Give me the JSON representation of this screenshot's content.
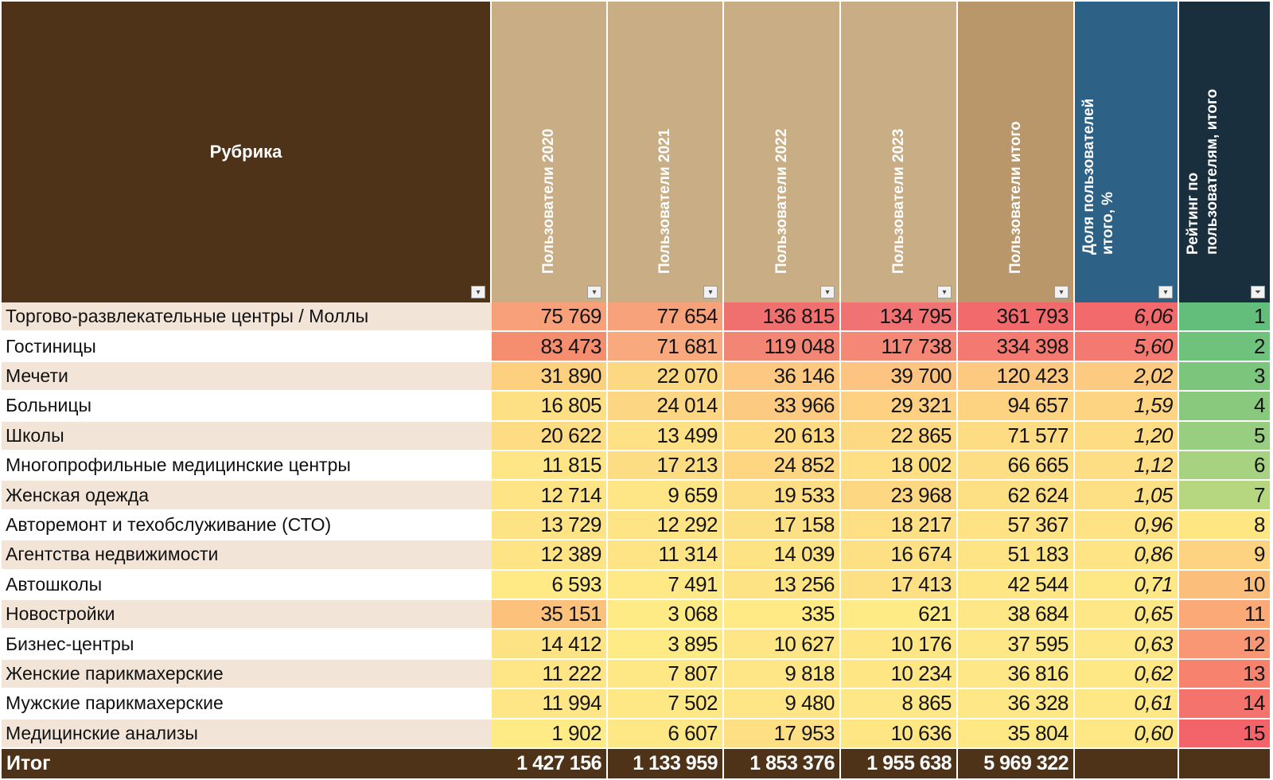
{
  "header": {
    "rubric": "Рубрика",
    "cols": [
      {
        "label": "Пользователи 2020",
        "color": "#c9ae85"
      },
      {
        "label": "Пользователи 2021",
        "color": "#c9ae85"
      },
      {
        "label": "Пользователи 2022",
        "color": "#c9ae85"
      },
      {
        "label": "Пользователи 2023",
        "color": "#c9ae85"
      },
      {
        "label": "Пользователи итого",
        "color": "#b9976a"
      },
      {
        "label": "Доля пользователей итого, %",
        "color": "#2d6286"
      },
      {
        "label": "Рейтинг по пользователям, итого",
        "color": "#1a2f3e"
      }
    ],
    "rubric_color": "#4f3319"
  },
  "rows": [
    {
      "name": "Торгово-развлекательные центры / Моллы",
      "v": [
        "75 769",
        "77 654",
        "136 815",
        "134 795",
        "361 793",
        "6,06",
        "1"
      ],
      "c": [
        "#f7a07a",
        "#f7a27b",
        "#f07070",
        "#f17272",
        "#f26a6b",
        "#f26a6b",
        "#63be7b"
      ]
    },
    {
      "name": "Гостиницы",
      "v": [
        "83 473",
        "71 681",
        "119 048",
        "117 738",
        "334 398",
        "5,60",
        "2"
      ],
      "c": [
        "#f58d6f",
        "#f8a97e",
        "#f38575",
        "#f48776",
        "#f47a71",
        "#f47a71",
        "#6fc27c"
      ]
    },
    {
      "name": "Мечети",
      "v": [
        "31 890",
        "22 070",
        "36 146",
        "39 700",
        "120 423",
        "2,02",
        "3"
      ],
      "c": [
        "#fcd07f",
        "#fdd883",
        "#fdc881",
        "#fdc380",
        "#fdc981",
        "#fdca81",
        "#7cc57d"
      ]
    },
    {
      "name": "Больницы",
      "v": [
        "16 805",
        "24 014",
        "33 966",
        "29 321",
        "94 657",
        "1,59",
        "4"
      ],
      "c": [
        "#fee084",
        "#fdd683",
        "#fdca81",
        "#fdd181",
        "#fdd382",
        "#fdd482",
        "#89c97e"
      ]
    },
    {
      "name": "Школы",
      "v": [
        "20 622",
        "13 499",
        "20 613",
        "22 865",
        "71 577",
        "1,20",
        "5"
      ],
      "c": [
        "#fedc83",
        "#fee185",
        "#fedb83",
        "#fed983",
        "#fedc83",
        "#fedc83",
        "#98ce7f"
      ]
    },
    {
      "name": "Многопрофильные медицинские центры",
      "v": [
        "11 815",
        "17 213",
        "24 852",
        "18 002",
        "66 665",
        "1,12",
        "6"
      ],
      "c": [
        "#fee585",
        "#fddd84",
        "#fed682",
        "#fedf84",
        "#fede84",
        "#fede84",
        "#a7d27f"
      ]
    },
    {
      "name": "Женская одежда",
      "v": [
        "12 714",
        "9 659",
        "19 533",
        "23 968",
        "62 624",
        "1,05",
        "7"
      ],
      "c": [
        "#fee485",
        "#fee686",
        "#fede84",
        "#fed783",
        "#fee084",
        "#fee084",
        "#b6d780"
      ]
    },
    {
      "name": "Авторемонт и техобслуживание (СТО)",
      "v": [
        "13 729",
        "12 292",
        "17 158",
        "18 217",
        "57 367",
        "0,96",
        "8"
      ],
      "c": [
        "#fee385",
        "#fee485",
        "#fee084",
        "#fedf84",
        "#fee284",
        "#fee284",
        "#fee783"
      ]
    },
    {
      "name": "Агентства недвижимости",
      "v": [
        "12 389",
        "11 314",
        "14 039",
        "16 674",
        "51 183",
        "0,86",
        "9"
      ],
      "c": [
        "#fee485",
        "#fee485",
        "#fee385",
        "#fee084",
        "#fee485",
        "#fee485",
        "#fdd381"
      ]
    },
    {
      "name": "Автошколы",
      "v": [
        "6 593",
        "7 491",
        "13 256",
        "17 413",
        "42 544",
        "0,71",
        "10"
      ],
      "c": [
        "#ffea86",
        "#fee986",
        "#fee385",
        "#fee084",
        "#fee685",
        "#fee785",
        "#fcbf7b"
      ]
    },
    {
      "name": "Новостройки",
      "v": [
        "35 151",
        "3 068",
        "335",
        "621",
        "38 684",
        "0,65",
        "11"
      ],
      "c": [
        "#fcc27c",
        "#ffeb86",
        "#ffea86",
        "#ffeb86",
        "#fee786",
        "#fee786",
        "#fbaa77"
      ]
    },
    {
      "name": "Бизнес-центры",
      "v": [
        "14 412",
        "3 895",
        "10 627",
        "10 176",
        "37 595",
        "0,63",
        "12"
      ],
      "c": [
        "#fee385",
        "#ffeb86",
        "#fee585",
        "#fee685",
        "#fee786",
        "#fee786",
        "#f99673"
      ]
    },
    {
      "name": "Женские парикмахерские",
      "v": [
        "11 222",
        "7 807",
        "9 818",
        "10 234",
        "36 816",
        "0,62",
        "13"
      ],
      "c": [
        "#fee585",
        "#fee886",
        "#fee686",
        "#fee685",
        "#fee786",
        "#fee886",
        "#f7836f"
      ]
    },
    {
      "name": "Мужские парикмахерские",
      "v": [
        "11 994",
        "7 502",
        "9 480",
        "8 865",
        "36 328",
        "0,61",
        "14"
      ],
      "c": [
        "#fee585",
        "#fee886",
        "#fee686",
        "#fee786",
        "#fee786",
        "#fee886",
        "#f5736d"
      ]
    },
    {
      "name": "Медицинские анализы",
      "v": [
        "1 902",
        "6 607",
        "17 953",
        "10 636",
        "35 804",
        "0,60",
        "15"
      ],
      "c": [
        "#ffeb86",
        "#fee886",
        "#fedf84",
        "#fee685",
        "#fee886",
        "#fee886",
        "#f3636a"
      ]
    }
  ],
  "row_bg": [
    "#f2e5d8",
    "#ffffff"
  ],
  "total": {
    "label": "Итог",
    "values": [
      "1 427 156",
      "1 133 959",
      "1 853 376",
      "1 955 638",
      "5 969 322",
      "",
      ""
    ]
  },
  "icons": {
    "dropdown": "dropdown-arrow-icon",
    "filter": "filter-active-icon"
  }
}
